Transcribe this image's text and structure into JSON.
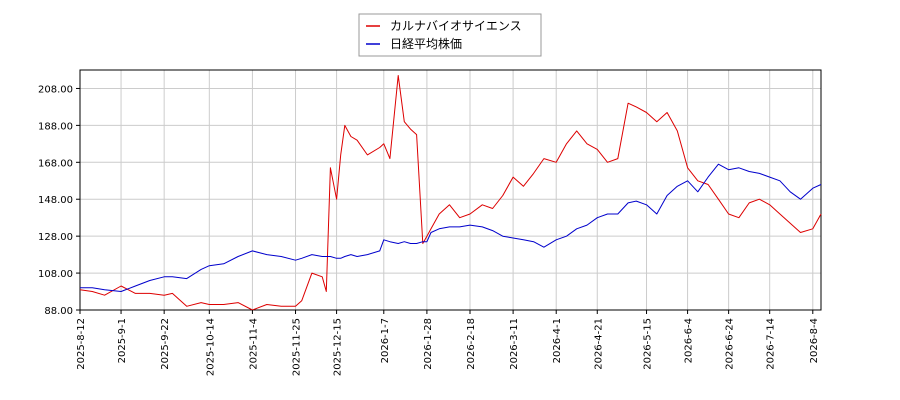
{
  "chart_data": {
    "type": "line",
    "title": "",
    "xlabel": "",
    "ylabel": "",
    "ylim": [
      88,
      218
    ],
    "grid": true,
    "legend_position": "top-center",
    "y_ticks": [
      "88.00",
      "108.00",
      "128.00",
      "148.00",
      "168.00",
      "188.00",
      "208.00"
    ],
    "x_ticks": [
      "2025-8-12",
      "2025-9-1",
      "2025-9-22",
      "2025-10-14",
      "2025-11-4",
      "2025-11-25",
      "2025-12-15",
      "2026-1-7",
      "2026-1-28",
      "2026-2-18",
      "2026-3-11",
      "2026-4-1",
      "2026-4-21",
      "2026-5-15",
      "2026-6-4",
      "2026-6-24",
      "2026-7-14",
      "2026-8-4"
    ],
    "series": [
      {
        "name": "カルナバイオサイエンス",
        "color": "#dd0000",
        "x": [
          "2025-8-12",
          "2025-8-18",
          "2025-8-24",
          "2025-9-1",
          "2025-9-8",
          "2025-9-15",
          "2025-9-22",
          "2025-9-26",
          "2025-10-3",
          "2025-10-10",
          "2025-10-14",
          "2025-10-21",
          "2025-10-28",
          "2025-11-4",
          "2025-11-11",
          "2025-11-18",
          "2025-11-25",
          "2025-11-28",
          "2025-12-3",
          "2025-12-8",
          "2025-12-10",
          "2025-12-12",
          "2025-12-15",
          "2025-12-17",
          "2025-12-19",
          "2025-12-22",
          "2025-12-25",
          "2025-12-30",
          "2026-1-5",
          "2026-1-7",
          "2026-1-10",
          "2026-1-14",
          "2026-1-17",
          "2026-1-20",
          "2026-1-23",
          "2026-1-26",
          "2026-1-28",
          "2026-1-30",
          "2026-2-3",
          "2026-2-8",
          "2026-2-13",
          "2026-2-18",
          "2026-2-24",
          "2026-3-1",
          "2026-3-6",
          "2026-3-11",
          "2026-3-16",
          "2026-3-21",
          "2026-3-26",
          "2026-4-1",
          "2026-4-6",
          "2026-4-11",
          "2026-4-16",
          "2026-4-21",
          "2026-4-26",
          "2026-5-1",
          "2026-5-6",
          "2026-5-10",
          "2026-5-15",
          "2026-5-20",
          "2026-5-25",
          "2026-5-30",
          "2026-6-4",
          "2026-6-9",
          "2026-6-14",
          "2026-6-19",
          "2026-6-24",
          "2026-6-29",
          "2026-7-4",
          "2026-7-9",
          "2026-7-14",
          "2026-7-19",
          "2026-7-24",
          "2026-7-29",
          "2026-8-4",
          "2026-8-8"
        ],
        "values": [
          99,
          98,
          96,
          101,
          97,
          97,
          96,
          97,
          90,
          92,
          91,
          91,
          92,
          88,
          91,
          90,
          90,
          93,
          108,
          106,
          98,
          165,
          148,
          172,
          188,
          182,
          180,
          172,
          176,
          178,
          170,
          215,
          190,
          186,
          183,
          124,
          128,
          132,
          140,
          145,
          138,
          140,
          145,
          143,
          150,
          160,
          155,
          162,
          170,
          168,
          178,
          185,
          178,
          175,
          168,
          170,
          200,
          198,
          195,
          190,
          195,
          185,
          165,
          158,
          156,
          148,
          140,
          138,
          146,
          148,
          145,
          140,
          135,
          130,
          132,
          140
        ]
      },
      {
        "name": "日経平均株価",
        "color": "#0000cc",
        "x": [
          "2025-8-12",
          "2025-8-18",
          "2025-8-24",
          "2025-9-1",
          "2025-9-8",
          "2025-9-15",
          "2025-9-22",
          "2025-9-26",
          "2025-10-3",
          "2025-10-10",
          "2025-10-14",
          "2025-10-21",
          "2025-10-28",
          "2025-11-4",
          "2025-11-11",
          "2025-11-18",
          "2025-11-25",
          "2025-11-28",
          "2025-12-3",
          "2025-12-8",
          "2025-12-10",
          "2025-12-12",
          "2025-12-15",
          "2025-12-17",
          "2025-12-19",
          "2025-12-22",
          "2025-12-25",
          "2025-12-30",
          "2026-1-5",
          "2026-1-7",
          "2026-1-10",
          "2026-1-14",
          "2026-1-17",
          "2026-1-20",
          "2026-1-23",
          "2026-1-26",
          "2026-1-28",
          "2026-1-30",
          "2026-2-3",
          "2026-2-8",
          "2026-2-13",
          "2026-2-18",
          "2026-2-24",
          "2026-3-1",
          "2026-3-6",
          "2026-3-11",
          "2026-3-16",
          "2026-3-21",
          "2026-3-26",
          "2026-4-1",
          "2026-4-6",
          "2026-4-11",
          "2026-4-16",
          "2026-4-21",
          "2026-4-26",
          "2026-5-1",
          "2026-5-6",
          "2026-5-10",
          "2026-5-15",
          "2026-5-20",
          "2026-5-25",
          "2026-5-30",
          "2026-6-4",
          "2026-6-9",
          "2026-6-14",
          "2026-6-19",
          "2026-6-24",
          "2026-6-29",
          "2026-7-4",
          "2026-7-9",
          "2026-7-14",
          "2026-7-19",
          "2026-7-24",
          "2026-7-29",
          "2026-8-4",
          "2026-8-8"
        ],
        "values": [
          100,
          100,
          99,
          98,
          101,
          104,
          106,
          106,
          105,
          110,
          112,
          113,
          117,
          120,
          118,
          117,
          115,
          116,
          118,
          117,
          117,
          117,
          116,
          116,
          117,
          118,
          117,
          118,
          120,
          126,
          125,
          124,
          125,
          124,
          124,
          125,
          125,
          130,
          132,
          133,
          133,
          134,
          133,
          131,
          128,
          127,
          126,
          125,
          122,
          126,
          128,
          132,
          134,
          138,
          140,
          140,
          146,
          147,
          145,
          140,
          150,
          155,
          158,
          152,
          160,
          167,
          164,
          165,
          163,
          162,
          160,
          158,
          152,
          148,
          154,
          156
        ]
      }
    ]
  }
}
